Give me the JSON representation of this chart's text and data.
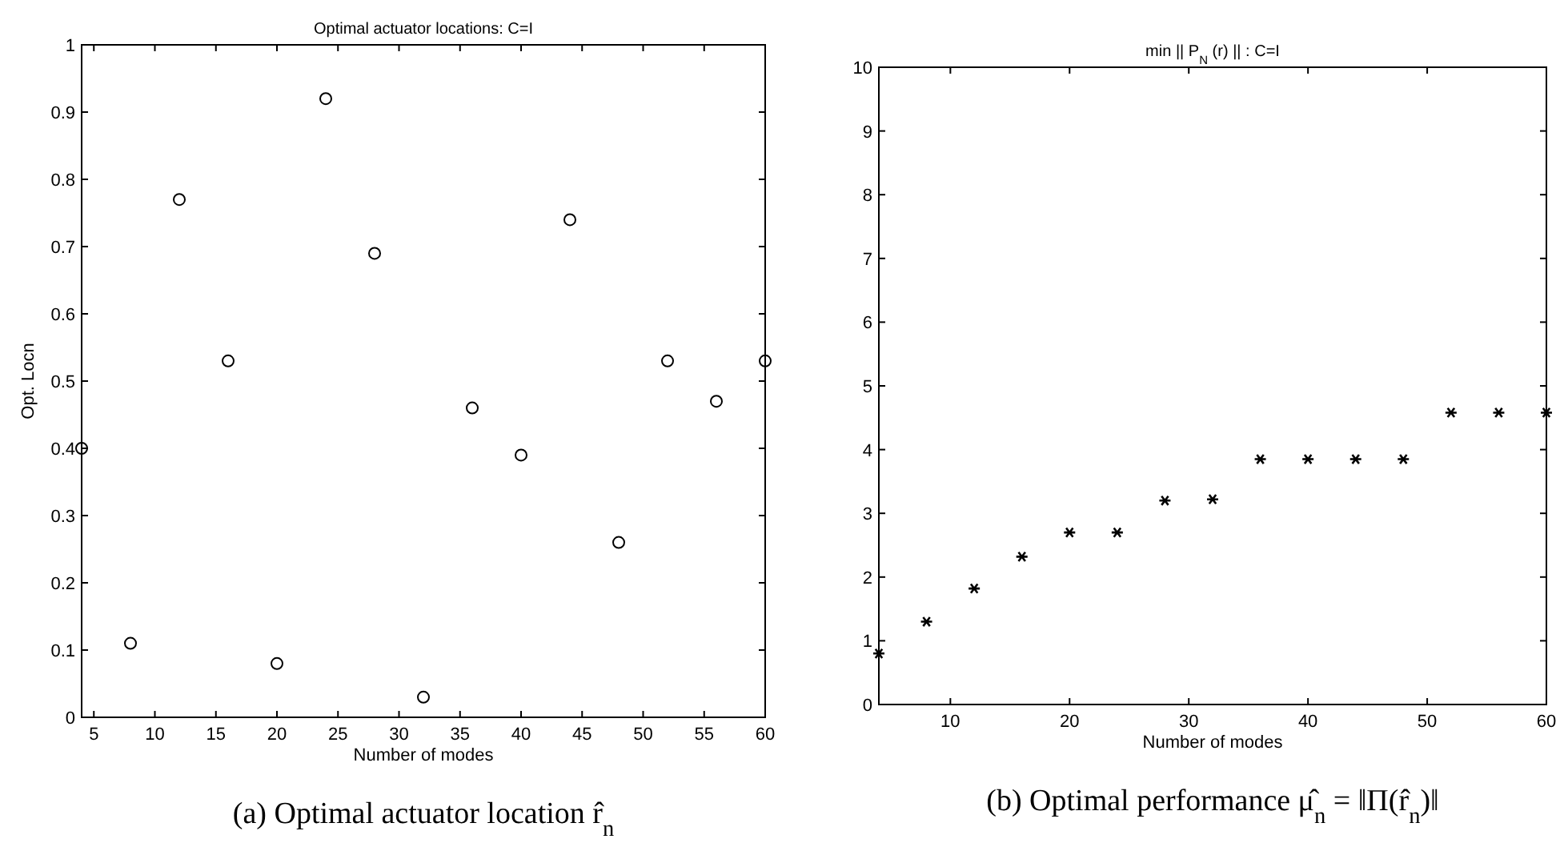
{
  "chart_data": [
    {
      "type": "scatter",
      "title": "Optimal actuator locations:  C=I",
      "xlabel": "Number of modes",
      "ylabel": "Opt. Locn",
      "x": [
        4,
        8,
        12,
        16,
        20,
        24,
        28,
        32,
        36,
        40,
        44,
        48,
        52,
        56,
        60
      ],
      "series": [
        {
          "color": "#000000",
          "values": [
            0.4,
            0.11,
            0.77,
            0.53,
            0.08,
            0.92,
            0.69,
            0.03,
            0.46,
            0.39,
            0.74,
            0.26,
            0.53,
            0.47,
            0.53
          ]
        }
      ],
      "xlim": [
        4,
        60
      ],
      "xticks": [
        5,
        10,
        15,
        20,
        25,
        30,
        35,
        40,
        45,
        50,
        55,
        60
      ],
      "ylim": [
        0,
        1
      ],
      "yticks": [
        0,
        0.1,
        0.2,
        0.3,
        0.4,
        0.5,
        0.6,
        0.7,
        0.8,
        0.9,
        1
      ],
      "marker": "circle",
      "grid": false,
      "annotations": [
        "(a) Optimal actuator location r̂$_{n}$"
      ]
    },
    {
      "type": "scatter",
      "title": "min || P$_{N}$ (r) || :  C=I",
      "xlabel": "Number  of modes",
      "x": [
        4,
        8,
        12,
        16,
        20,
        24,
        28,
        32,
        36,
        40,
        44,
        48,
        52,
        56,
        60
      ],
      "series": [
        {
          "color": "#000000",
          "values": [
            0.8,
            1.3,
            1.82,
            2.32,
            2.7,
            2.7,
            3.2,
            3.22,
            3.85,
            3.85,
            3.85,
            3.85,
            4.58,
            4.58,
            4.58
          ]
        }
      ],
      "xlim": [
        4,
        60
      ],
      "xticks": [
        10,
        20,
        30,
        40,
        50,
        60
      ],
      "ylim": [
        0,
        10
      ],
      "yticks": [
        0,
        1,
        2,
        3,
        4,
        5,
        6,
        7,
        8,
        9,
        10
      ],
      "marker": "cross",
      "grid": false,
      "annotations": [
        "(b) Optimal performance μ̂$_{n}$ = ‖Π(r̂$_{n}$)‖"
      ]
    }
  ]
}
